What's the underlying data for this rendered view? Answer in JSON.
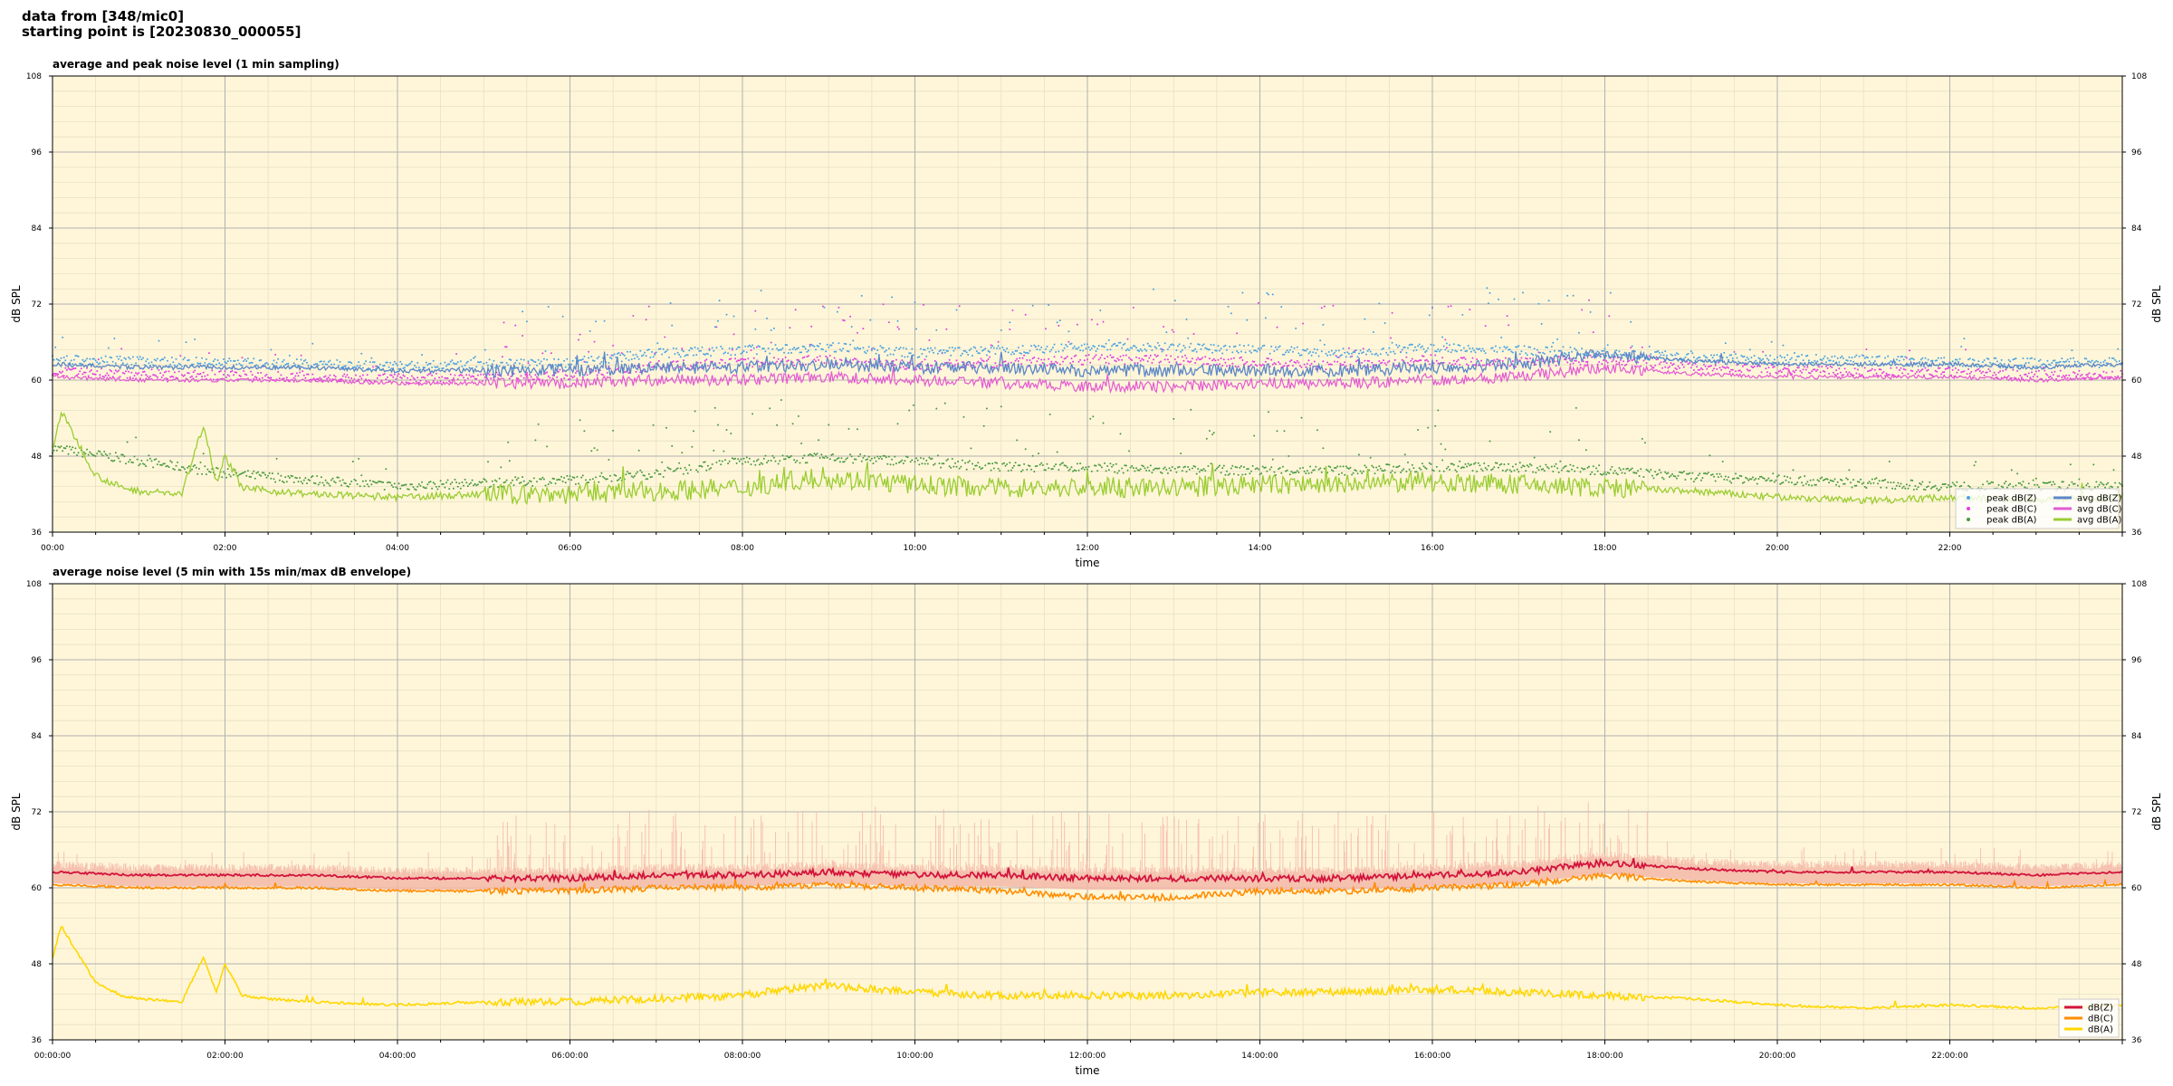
{
  "header": {
    "line1": "data from [348/mic0]",
    "line2": "starting point is [20230830_000055]"
  },
  "colors": {
    "plot_bg": "#fff6d9",
    "grid_major": "#b0b0b0",
    "grid_minor": "#e8e0c4",
    "avg_z": "#5b87c7",
    "avg_c": "#e459d2",
    "avg_a": "#9acd32",
    "peak_z": "#4aa3e0",
    "peak_c": "#e040e0",
    "peak_a": "#4a9a40",
    "db_z": "#d2143c",
    "db_c": "#ff8c00",
    "db_a": "#ffd700",
    "envelope": "#f4b8a8"
  },
  "chart_data": [
    {
      "type": "line",
      "title": "average and peak noise level (1 min sampling)",
      "xlabel": "time",
      "ylabel": "dB SPL",
      "xlim": [
        0,
        24
      ],
      "ylim": [
        36,
        108
      ],
      "yticks": [
        "36",
        "48",
        "60",
        "72",
        "84",
        "96",
        "108"
      ],
      "xticks": [
        "00:00",
        "02:00",
        "04:00",
        "06:00",
        "08:00",
        "10:00",
        "12:00",
        "14:00",
        "16:00",
        "18:00",
        "20:00",
        "22:00"
      ],
      "grid": true,
      "legend_position": "bottom-right",
      "legend": [
        "peak dB(Z)",
        "peak dB(C)",
        "peak dB(A)",
        "avg dB(Z)",
        "avg dB(C)",
        "avg dB(A)"
      ],
      "series": [
        {
          "name": "avg dB(Z)",
          "x": [
            0,
            1,
            2,
            3,
            4,
            5,
            6,
            7,
            8,
            9,
            10,
            11,
            12,
            13,
            14,
            15,
            16,
            17,
            18,
            19,
            20,
            21,
            22,
            23,
            24
          ],
          "values": [
            62.5,
            62,
            62,
            62,
            61.5,
            61.5,
            61.5,
            62,
            62,
            62.5,
            62,
            62,
            61.5,
            61.5,
            61.5,
            61.5,
            62,
            62.5,
            64,
            63,
            62.5,
            62.5,
            62.5,
            62,
            62.5
          ]
        },
        {
          "name": "avg dB(C)",
          "x": [
            0,
            1,
            2,
            3,
            4,
            5,
            6,
            7,
            8,
            9,
            10,
            11,
            12,
            13,
            14,
            15,
            16,
            17,
            18,
            19,
            20,
            21,
            22,
            23,
            24
          ],
          "values": [
            60.5,
            60,
            60,
            60,
            59.5,
            59.5,
            59.5,
            60,
            60,
            60.5,
            60,
            59.5,
            59,
            59,
            59.5,
            59.5,
            60,
            60.5,
            62,
            61,
            60.5,
            60.5,
            60.5,
            60,
            60.5
          ]
        },
        {
          "name": "avg dB(A)",
          "x": [
            0,
            0.1,
            0.3,
            0.5,
            0.8,
            1,
            1.5,
            1.75,
            1.9,
            2,
            2.2,
            2.5,
            3,
            4,
            5,
            6,
            7,
            8,
            8.5,
            9,
            10,
            11,
            12,
            13,
            14,
            15,
            16,
            17,
            18,
            19,
            20,
            21,
            22,
            23,
            24
          ],
          "values": [
            49,
            55,
            50,
            45,
            43,
            42.5,
            42,
            53,
            44,
            48,
            43,
            42.5,
            42,
            41.5,
            42,
            42,
            42.5,
            43,
            44,
            44.5,
            43.5,
            43,
            43,
            43,
            43.5,
            43.5,
            44,
            43.5,
            43,
            42.5,
            41.5,
            41,
            41.5,
            41,
            41.5
          ]
        },
        {
          "name": "peak dB(Z)",
          "x": [
            0,
            2,
            4,
            6,
            7,
            8,
            9,
            10,
            11,
            12,
            13,
            14,
            15,
            16,
            17,
            18,
            19,
            20,
            21,
            22,
            23,
            24
          ],
          "values": [
            64,
            63.5,
            63,
            63.5,
            65,
            65.5,
            66,
            65,
            65.5,
            66,
            66,
            65.5,
            65,
            66,
            65.5,
            65,
            64.5,
            64,
            64,
            63.5,
            63.5,
            63.5
          ]
        },
        {
          "name": "peak dB(C)",
          "x": [
            0,
            2,
            4,
            6,
            7,
            8,
            9,
            10,
            11,
            12,
            13,
            14,
            15,
            16,
            17,
            18,
            19,
            20,
            21,
            22,
            23,
            24
          ],
          "values": [
            62,
            61.5,
            61,
            61.5,
            63,
            63.5,
            64,
            63,
            63.5,
            64,
            64,
            63.5,
            63,
            64,
            63.5,
            64,
            63,
            62.5,
            62,
            62,
            61.5,
            61.5
          ]
        },
        {
          "name": "peak dB(A)",
          "x": [
            0,
            2,
            4,
            6,
            7,
            8,
            9,
            10,
            11,
            12,
            13,
            14,
            15,
            16,
            17,
            18,
            19,
            20,
            21,
            22,
            23,
            24
          ],
          "values": [
            50,
            46,
            44,
            45,
            46,
            48,
            48.5,
            48,
            47,
            47,
            46.5,
            46.5,
            46.5,
            47,
            47,
            46.5,
            45.5,
            45,
            44.5,
            44,
            44,
            44
          ]
        }
      ]
    },
    {
      "type": "line",
      "title": "average noise level (5 min with 15s min/max dB envelope)",
      "xlabel": "time",
      "ylabel": "dB SPL",
      "xlim": [
        0,
        24
      ],
      "ylim": [
        36,
        108
      ],
      "yticks": [
        "36",
        "48",
        "60",
        "72",
        "84",
        "96",
        "108"
      ],
      "xticks": [
        "00:00:00",
        "02:00:00",
        "04:00:00",
        "06:00:00",
        "08:00:00",
        "10:00:00",
        "12:00:00",
        "14:00:00",
        "16:00:00",
        "18:00:00",
        "20:00:00",
        "22:00:00"
      ],
      "grid": true,
      "legend_position": "bottom-right",
      "legend": [
        "dB(Z)",
        "dB(C)",
        "dB(A)"
      ],
      "series": [
        {
          "name": "dB(Z)",
          "x": [
            0,
            1,
            2,
            3,
            4,
            5,
            6,
            7,
            8,
            9,
            10,
            11,
            12,
            13,
            14,
            15,
            16,
            17,
            18,
            19,
            20,
            21,
            22,
            23,
            24
          ],
          "values": [
            62.5,
            62,
            62,
            62,
            61.5,
            61.5,
            61.5,
            62,
            62,
            62.5,
            62,
            62,
            61.5,
            61.5,
            61.5,
            61.5,
            62,
            62.5,
            64,
            63,
            62.5,
            62.5,
            62.5,
            62,
            62.5
          ]
        },
        {
          "name": "dB(C)",
          "x": [
            0,
            1,
            2,
            3,
            4,
            5,
            6,
            7,
            8,
            9,
            10,
            11,
            12,
            13,
            14,
            15,
            16,
            17,
            18,
            19,
            20,
            21,
            22,
            23,
            24
          ],
          "values": [
            60.5,
            60,
            60,
            60,
            59.5,
            59.5,
            59.5,
            60,
            60,
            60.5,
            60,
            59.5,
            58.5,
            58.5,
            59.5,
            59.5,
            60,
            60.5,
            62,
            61,
            60.5,
            60.5,
            60.5,
            60,
            60.5
          ]
        },
        {
          "name": "dB(A)",
          "x": [
            0,
            0.1,
            0.3,
            0.5,
            0.8,
            1,
            1.5,
            1.75,
            1.9,
            2,
            2.2,
            2.5,
            3,
            4,
            5,
            6,
            7,
            8,
            8.5,
            9,
            10,
            11,
            12,
            13,
            14,
            15,
            16,
            17,
            18,
            19,
            20,
            21,
            22,
            23,
            24
          ],
          "values": [
            49,
            54,
            49.5,
            45,
            43,
            42.5,
            42,
            49,
            43.5,
            48,
            43,
            42.5,
            42,
            41.5,
            42,
            42,
            42.5,
            43,
            44,
            44.5,
            43.5,
            43,
            43,
            43,
            43.5,
            43.5,
            44,
            43.5,
            43,
            42.5,
            41.5,
            41,
            41.5,
            41,
            41.5
          ]
        }
      ]
    }
  ]
}
